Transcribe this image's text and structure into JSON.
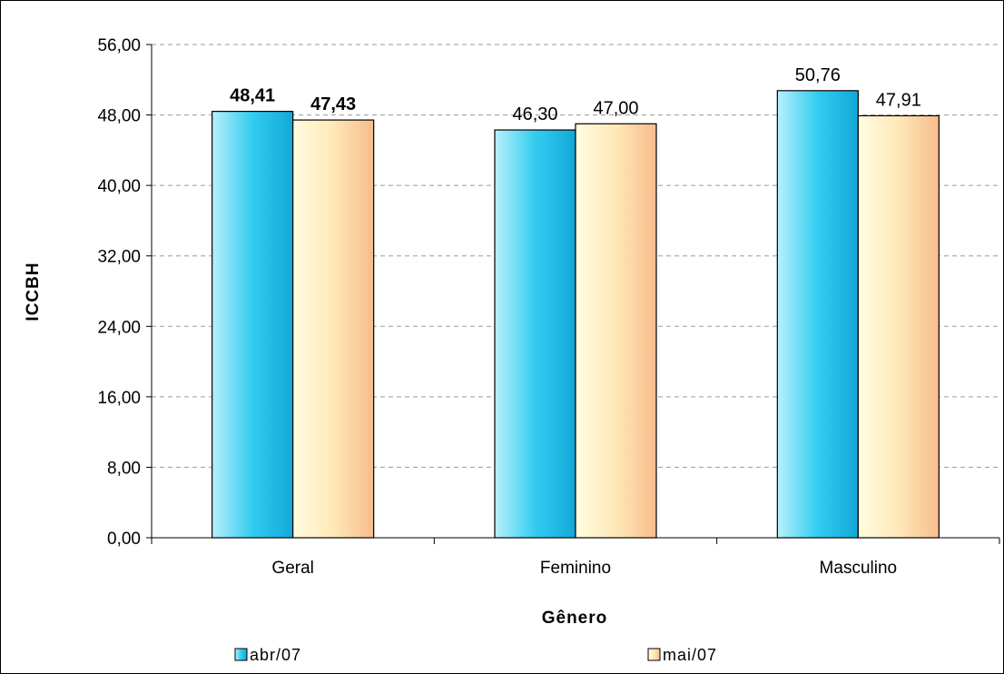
{
  "chart_data": {
    "type": "bar",
    "title": "",
    "xlabel": "Gênero",
    "ylabel": "ICCBH",
    "categories": [
      "Geral",
      "Feminino",
      "Masculino"
    ],
    "series": [
      {
        "name": "abr/07",
        "values": [
          48.41,
          46.3,
          50.76
        ],
        "labels": [
          "48,41",
          "46,30",
          "50,76"
        ],
        "bold_labels": [
          true,
          false,
          false
        ]
      },
      {
        "name": "mai/07",
        "values": [
          47.43,
          47.0,
          47.91
        ],
        "labels": [
          "47,43",
          "47,00",
          "47,91"
        ],
        "bold_labels": [
          true,
          false,
          false
        ]
      }
    ],
    "ylim": [
      0,
      56
    ],
    "yticks": [
      0,
      8,
      16,
      24,
      32,
      40,
      48,
      56
    ],
    "ytick_labels": [
      "0,00",
      "8,00",
      "16,00",
      "24,00",
      "32,00",
      "40,00",
      "48,00",
      "56,00"
    ],
    "grid": true,
    "legend_position": "bottom",
    "colors": {
      "abr07_light": "#b8f0fc",
      "abr07_mid": "#33ccf0",
      "abr07_dark": "#12a8d8",
      "mai07_light": "#fffde0",
      "mai07_mid": "#ffe8b8",
      "mai07_dark": "#f7bc8c"
    }
  }
}
